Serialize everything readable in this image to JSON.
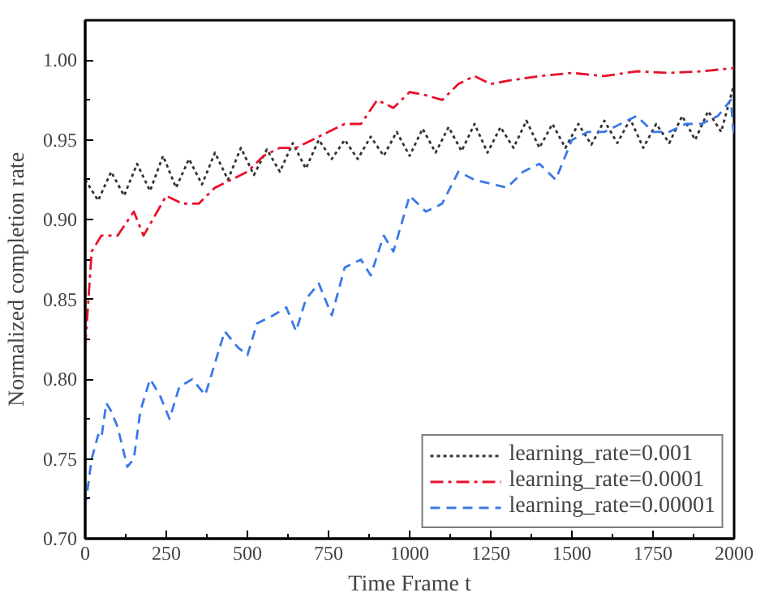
{
  "chart_data": {
    "type": "line",
    "xlabel": "Time Frame t",
    "ylabel": "Normalized completion rate",
    "xlim": [
      0,
      2000
    ],
    "ylim": [
      0.7,
      1.025
    ],
    "xticks": [
      0,
      250,
      500,
      750,
      1000,
      1250,
      1500,
      1750,
      2000
    ],
    "yticks": [
      {
        "value": 0.7,
        "label": "0.70"
      },
      {
        "value": 0.75,
        "label": "0.75"
      },
      {
        "value": 0.8,
        "label": "0.80"
      },
      {
        "value": 0.85,
        "label": "0.85"
      },
      {
        "value": 0.9,
        "label": "0.90"
      },
      {
        "value": 0.95,
        "label": "0.95"
      },
      {
        "value": 1.0,
        "label": "1.00"
      }
    ],
    "grid": false,
    "legend": "bottom right",
    "series": [
      {
        "name": "learning_rate=0.001",
        "color": "#333333",
        "line_style": "dotted",
        "x": [
          0,
          40,
          80,
          120,
          160,
          200,
          240,
          280,
          320,
          360,
          400,
          440,
          480,
          520,
          560,
          600,
          640,
          680,
          720,
          760,
          800,
          840,
          880,
          920,
          960,
          1000,
          1040,
          1080,
          1120,
          1160,
          1200,
          1240,
          1280,
          1320,
          1360,
          1400,
          1440,
          1480,
          1520,
          1560,
          1600,
          1640,
          1680,
          1720,
          1760,
          1800,
          1840,
          1880,
          1920,
          1960,
          2000
        ],
        "values": [
          0.925,
          0.912,
          0.93,
          0.915,
          0.935,
          0.918,
          0.94,
          0.92,
          0.938,
          0.922,
          0.942,
          0.925,
          0.945,
          0.928,
          0.944,
          0.93,
          0.948,
          0.932,
          0.95,
          0.938,
          0.95,
          0.938,
          0.952,
          0.94,
          0.955,
          0.94,
          0.957,
          0.942,
          0.958,
          0.943,
          0.96,
          0.942,
          0.958,
          0.945,
          0.962,
          0.945,
          0.96,
          0.945,
          0.96,
          0.947,
          0.962,
          0.948,
          0.963,
          0.945,
          0.96,
          0.948,
          0.965,
          0.95,
          0.968,
          0.955,
          0.985
        ]
      },
      {
        "name": "learning_rate=0.0001",
        "color": "#e8102a",
        "line_style": "dashdot",
        "x": [
          0,
          10,
          20,
          50,
          100,
          150,
          180,
          250,
          300,
          350,
          400,
          450,
          500,
          550,
          600,
          650,
          700,
          750,
          800,
          850,
          900,
          950,
          1000,
          1050,
          1100,
          1150,
          1200,
          1250,
          1300,
          1400,
          1500,
          1600,
          1700,
          1800,
          1900,
          2000
        ],
        "values": [
          0.82,
          0.85,
          0.88,
          0.89,
          0.89,
          0.905,
          0.89,
          0.915,
          0.91,
          0.91,
          0.92,
          0.925,
          0.93,
          0.94,
          0.945,
          0.945,
          0.95,
          0.955,
          0.96,
          0.96,
          0.975,
          0.97,
          0.98,
          0.978,
          0.975,
          0.985,
          0.99,
          0.985,
          0.987,
          0.99,
          0.992,
          0.99,
          0.993,
          0.992,
          0.993,
          0.995
        ]
      },
      {
        "name": "learning_rate=0.00001",
        "color": "#3a78e8",
        "line_style": "dashed",
        "x": [
          0,
          20,
          40,
          50,
          65,
          80,
          100,
          130,
          150,
          170,
          200,
          230,
          260,
          290,
          330,
          370,
          400,
          430,
          470,
          500,
          530,
          580,
          620,
          650,
          680,
          720,
          760,
          800,
          850,
          880,
          920,
          950,
          1000,
          1050,
          1100,
          1150,
          1200,
          1300,
          1350,
          1400,
          1450,
          1500,
          1550,
          1600,
          1650,
          1700,
          1750,
          1800,
          1850,
          1900,
          1950,
          1990,
          2000
        ],
        "values": [
          0.72,
          0.75,
          0.765,
          0.763,
          0.785,
          0.78,
          0.77,
          0.745,
          0.75,
          0.78,
          0.8,
          0.79,
          0.775,
          0.795,
          0.8,
          0.79,
          0.81,
          0.83,
          0.82,
          0.815,
          0.835,
          0.84,
          0.845,
          0.83,
          0.85,
          0.86,
          0.84,
          0.87,
          0.875,
          0.865,
          0.89,
          0.88,
          0.915,
          0.905,
          0.91,
          0.93,
          0.925,
          0.92,
          0.93,
          0.935,
          0.925,
          0.95,
          0.955,
          0.955,
          0.96,
          0.965,
          0.955,
          0.955,
          0.96,
          0.96,
          0.965,
          0.975,
          0.95
        ]
      }
    ]
  }
}
